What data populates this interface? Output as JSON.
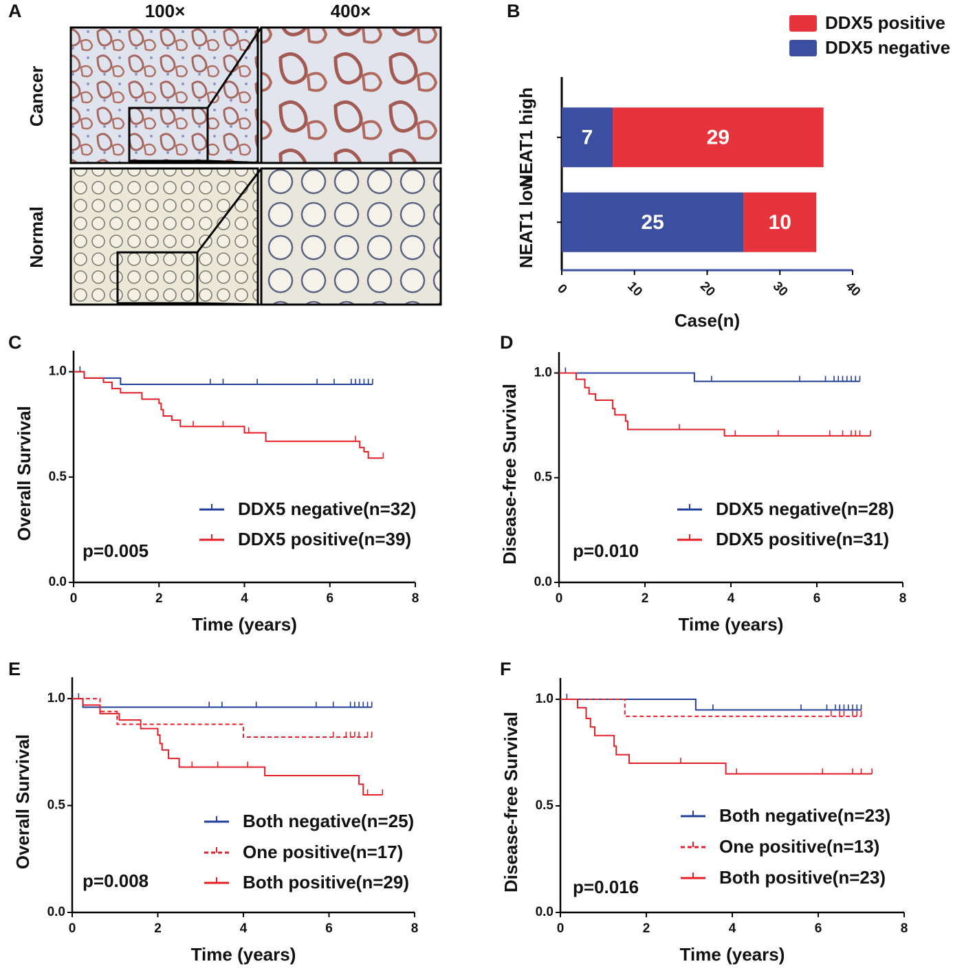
{
  "panel_labels": [
    "A",
    "B",
    "C",
    "D",
    "E",
    "F"
  ],
  "panel_a": {
    "columns": [
      "100×",
      "400×"
    ],
    "rows": [
      "Cancer",
      "Normal"
    ]
  },
  "chart_data": [
    {
      "type": "bar",
      "orientation": "horizontal",
      "stacked": true,
      "categories": [
        "NEAT1 high",
        "NEAT1 low"
      ],
      "series": [
        {
          "name": "DDX5 negative",
          "color": "#3b4ea0",
          "values": [
            7,
            25
          ]
        },
        {
          "name": "DDX5 positive",
          "color": "#e7333b",
          "values": [
            29,
            10
          ]
        }
      ],
      "xlim": [
        0,
        40
      ],
      "xticks": [
        0,
        10,
        20,
        30,
        40
      ],
      "xlabel": "Case(n)",
      "legend": "top-right"
    },
    {
      "type": "survival",
      "ylabel": "Overall Survival",
      "xlabel": "Time (years)",
      "annotation": "p=0.005",
      "xlim": [
        0,
        8
      ],
      "xticks": [
        0,
        2,
        4,
        6,
        8
      ],
      "ylim": [
        0,
        1.1
      ],
      "yticks": [
        {
          "value": 0,
          "label": "0.0"
        },
        0.5,
        {
          "value": 1,
          "label": "1.0"
        }
      ],
      "series": [
        {
          "name": "DDX5 negative(n=32)",
          "color": "#1f3d99",
          "dashed": false,
          "x": [
            0,
            0.25,
            1.1,
            7.0
          ],
          "values": [
            1.0,
            0.97,
            0.94,
            0.94
          ],
          "censor_x": [
            0.15,
            3.2,
            3.5,
            4.3,
            5.7,
            6.1,
            6.5,
            6.6,
            6.7,
            6.8,
            6.9,
            7.0
          ]
        },
        {
          "name": "DDX5 positive(n=39)",
          "color": "#e41e26",
          "dashed": false,
          "x": [
            0,
            0.25,
            0.7,
            0.9,
            1.1,
            1.6,
            2.0,
            2.05,
            2.1,
            2.3,
            2.5,
            4.0,
            4.5,
            6.7,
            6.8,
            6.9,
            7.25
          ],
          "values": [
            1.0,
            0.97,
            0.95,
            0.92,
            0.9,
            0.87,
            0.85,
            0.82,
            0.79,
            0.77,
            0.74,
            0.71,
            0.67,
            0.64,
            0.62,
            0.59,
            0.59
          ],
          "censor_x": [
            2.8,
            3.5,
            4.1,
            6.6,
            7.25
          ]
        }
      ]
    },
    {
      "type": "survival",
      "ylabel": "Disease-free Survival",
      "xlabel": "Time (years)",
      "annotation": "p=0.010",
      "xlim": [
        0,
        8
      ],
      "xticks": [
        0,
        2,
        4,
        6,
        8
      ],
      "ylim": [
        0,
        1.1
      ],
      "yticks": [
        {
          "value": 0,
          "label": "0.0"
        },
        0.5,
        {
          "value": 1,
          "label": "1.0"
        }
      ],
      "series": [
        {
          "name": "DDX5 negative(n=28)",
          "color": "#1f3d99",
          "dashed": false,
          "x": [
            0,
            3.15,
            7.0
          ],
          "values": [
            1.0,
            0.96,
            0.96
          ],
          "censor_x": [
            0.15,
            3.55,
            5.6,
            6.2,
            6.4,
            6.5,
            6.6,
            6.7,
            6.8,
            6.9,
            7.0
          ]
        },
        {
          "name": "DDX5 positive(n=31)",
          "color": "#e41e26",
          "dashed": false,
          "x": [
            0,
            0.4,
            0.6,
            0.7,
            0.85,
            1.25,
            1.3,
            1.55,
            1.6,
            3.85,
            7.25
          ],
          "values": [
            1.0,
            0.97,
            0.93,
            0.9,
            0.87,
            0.83,
            0.8,
            0.77,
            0.73,
            0.7,
            0.7
          ],
          "censor_x": [
            2.8,
            4.1,
            5.1,
            6.3,
            6.6,
            6.8,
            6.9,
            7.0,
            7.25
          ]
        }
      ]
    },
    {
      "type": "survival",
      "ylabel": "Overall Survival",
      "xlabel": "Time (years)",
      "annotation": "p=0.008",
      "xlim": [
        0,
        8
      ],
      "xticks": [
        0,
        2,
        4,
        6,
        8
      ],
      "ylim": [
        0,
        1.1
      ],
      "yticks": [
        {
          "value": 0,
          "label": "0.0"
        },
        0.5,
        {
          "value": 1,
          "label": "1.0"
        }
      ],
      "series": [
        {
          "name": "Both negative(n=25)",
          "color": "#1f3d99",
          "dashed": false,
          "x": [
            0,
            0.25,
            7.0
          ],
          "values": [
            1.0,
            0.96,
            0.96
          ],
          "censor_x": [
            0.15,
            3.2,
            3.5,
            4.3,
            5.7,
            6.1,
            6.5,
            6.6,
            6.7,
            6.8,
            6.9,
            7.0
          ]
        },
        {
          "name": "One positive(n=17)",
          "color": "#e41e26",
          "dashed": true,
          "x": [
            0,
            0.65,
            1.05,
            4.0,
            7.0
          ],
          "values": [
            1.0,
            0.94,
            0.88,
            0.82,
            0.82
          ],
          "censor_x": [
            6.1,
            6.4,
            6.5,
            6.6,
            6.7,
            6.9,
            7.0
          ]
        },
        {
          "name": "Both positive(n=29)",
          "color": "#e41e26",
          "dashed": false,
          "x": [
            0,
            0.25,
            0.65,
            1.1,
            1.6,
            2.0,
            2.05,
            2.1,
            2.25,
            2.5,
            4.5,
            6.7,
            6.8,
            7.25
          ],
          "values": [
            1.0,
            0.97,
            0.93,
            0.9,
            0.86,
            0.83,
            0.79,
            0.76,
            0.72,
            0.68,
            0.64,
            0.6,
            0.55,
            0.55
          ],
          "censor_x": [
            2.8,
            3.4,
            4.1,
            6.9,
            7.25
          ]
        }
      ]
    },
    {
      "type": "survival",
      "ylabel": "Disease-free Survival",
      "xlabel": "Time (years)",
      "annotation": "p=0.016",
      "xlim": [
        0,
        8
      ],
      "xticks": [
        0,
        2,
        4,
        6,
        8
      ],
      "ylim": [
        0,
        1.1
      ],
      "yticks": [
        {
          "value": 0,
          "label": "0.0"
        },
        0.5,
        {
          "value": 1,
          "label": "1.0"
        }
      ],
      "series": [
        {
          "name": "Both negative(n=23)",
          "color": "#1f3d99",
          "dashed": false,
          "x": [
            0,
            3.15,
            7.0
          ],
          "values": [
            1.0,
            0.95,
            0.95
          ],
          "censor_x": [
            0.15,
            3.55,
            5.6,
            6.2,
            6.4,
            6.5,
            6.6,
            6.7,
            6.8,
            6.9,
            7.0
          ]
        },
        {
          "name": "One positive(n=13)",
          "color": "#e41e26",
          "dashed": true,
          "x": [
            0,
            1.5,
            7.0
          ],
          "values": [
            1.0,
            0.92,
            0.92
          ],
          "censor_x": [
            6.3,
            6.5,
            6.6,
            6.8,
            6.9,
            7.0
          ]
        },
        {
          "name": "Both positive(n=23)",
          "color": "#e41e26",
          "dashed": false,
          "x": [
            0,
            0.4,
            0.6,
            0.7,
            0.8,
            1.25,
            1.3,
            1.6,
            3.85,
            7.25
          ],
          "values": [
            1.0,
            0.96,
            0.91,
            0.87,
            0.83,
            0.78,
            0.74,
            0.7,
            0.65,
            0.65
          ],
          "censor_x": [
            2.8,
            4.1,
            6.1,
            6.8,
            7.0,
            7.25
          ]
        }
      ]
    }
  ]
}
